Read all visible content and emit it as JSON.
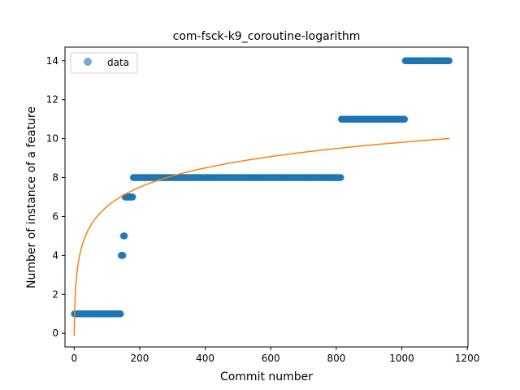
{
  "chart_data": {
    "type": "scatter",
    "title": "com-fsck-k9_coroutine-logarithm",
    "xlabel": "Commit number",
    "ylabel": "Number of instance of a feature",
    "xlim": [
      -28,
      1202
    ],
    "ylim": [
      -0.7,
      14.7
    ],
    "xticks": [
      0,
      200,
      400,
      600,
      800,
      1000,
      1200
    ],
    "yticks": [
      0,
      2,
      4,
      6,
      8,
      10,
      12,
      14
    ],
    "grid": false,
    "legend": {
      "placement": "top-left",
      "entries": [
        "data"
      ]
    },
    "colors": {
      "data": "#1f77b4",
      "fit": "#ff7f0e"
    },
    "series": [
      {
        "name": "data",
        "kind": "scatter",
        "segments": [
          {
            "x_start": 0,
            "x_end": 143,
            "y": 1
          },
          {
            "x_start": 143,
            "x_end": 150,
            "y": 4
          },
          {
            "x_start": 150,
            "x_end": 155,
            "y": 5
          },
          {
            "x_start": 155,
            "x_end": 180,
            "y": 7
          },
          {
            "x_start": 180,
            "x_end": 815,
            "y": 8
          },
          {
            "x_start": 815,
            "x_end": 1010,
            "y": 11
          },
          {
            "x_start": 1010,
            "x_end": 1146,
            "y": 14
          }
        ]
      },
      {
        "kind": "line",
        "model": "logarithmic",
        "equation": {
          "a": 1.439,
          "b": -0.13,
          "c": 1
        },
        "x_range": [
          0,
          1146
        ]
      }
    ]
  }
}
